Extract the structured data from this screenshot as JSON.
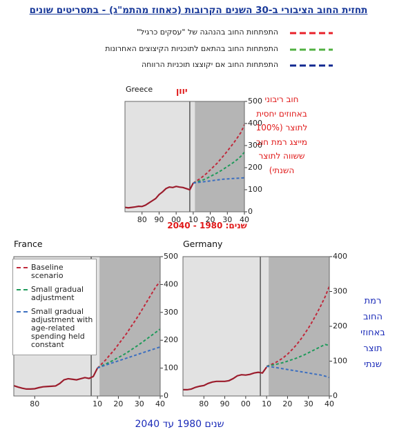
{
  "title": "תחזית החוב הציבורי ב-30 השנים הקרובות (כאחוז מהתמ\"ג) - בתסריטים שונים",
  "legend": [
    {
      "label": "התפתחות החוב בהנהגה של \"עסקים כרגיל\"",
      "color": "#e8202a"
    },
    {
      "label": "התפתחות החוב בהתאם לתוכניות הקיצוצים האחרונות",
      "color": "#50b040"
    },
    {
      "label": "התפתחות החוב אם יקוצצו תוכניות הרווחה",
      "color": "#102890"
    }
  ],
  "notes": {
    "greece_years": "שנים: 1980 - 2040",
    "greece_axis": [
      "חוב ריבוני",
      "באחוזים יחסית",
      "לתוצר (100%",
      "מייצג רמת חוב",
      "ששווה לתוצר",
      "השנתי)"
    ],
    "germany_axis": [
      "רמת",
      "החוב",
      "באחוזי",
      "תוצר",
      "שנתי"
    ],
    "bottom_years": "שנים 1980 עד 2040"
  },
  "chart_data": [
    {
      "type": "line",
      "title": "Greece",
      "subtitle": "יוון",
      "x": [
        1970,
        1972,
        1974,
        1976,
        1978,
        1980,
        1982,
        1984,
        1986,
        1988,
        1990,
        1992,
        1994,
        1996,
        1998,
        2000,
        2002,
        2004,
        2006,
        2008,
        2010,
        2012,
        2014,
        2016,
        2018,
        2020,
        2022,
        2024,
        2026,
        2028,
        2030,
        2032,
        2034,
        2036,
        2038,
        2040
      ],
      "xlim": [
        1970,
        2040
      ],
      "xticks": [
        {
          "value": 1980,
          "label": "80"
        },
        {
          "value": 1990,
          "label": "90"
        },
        {
          "value": 2000,
          "label": "00"
        },
        {
          "value": 2010,
          "label": "10"
        },
        {
          "value": 2020,
          "label": "20"
        },
        {
          "value": 2030,
          "label": "30"
        },
        {
          "value": 2040,
          "label": "40"
        }
      ],
      "ylim": [
        0,
        500
      ],
      "yticks": [
        0,
        100,
        200,
        300,
        400,
        500
      ],
      "shade_from": 2011,
      "vline": 2008,
      "grid": false,
      "series": [
        {
          "color": "#9b1c2c",
          "dashed": false,
          "values": [
            20,
            18,
            20,
            22,
            25,
            24,
            30,
            40,
            50,
            60,
            78,
            90,
            105,
            112,
            110,
            115,
            112,
            110,
            105,
            100,
            130,
            null,
            null,
            null,
            null,
            null,
            null,
            null,
            null,
            null,
            null,
            null,
            null,
            null,
            null,
            null
          ]
        },
        {
          "color": "#c0283a",
          "dashed": true,
          "values": [
            null,
            null,
            null,
            null,
            null,
            null,
            null,
            null,
            null,
            null,
            null,
            null,
            null,
            null,
            null,
            null,
            null,
            null,
            null,
            null,
            130,
            140,
            150,
            162,
            175,
            190,
            205,
            220,
            238,
            256,
            275,
            295,
            315,
            337,
            360,
            395
          ]
        },
        {
          "color": "#1e9a5a",
          "dashed": true,
          "values": [
            null,
            null,
            null,
            null,
            null,
            null,
            null,
            null,
            null,
            null,
            null,
            null,
            null,
            null,
            null,
            null,
            null,
            null,
            null,
            null,
            130,
            135,
            140,
            145,
            152,
            160,
            168,
            176,
            185,
            195,
            205,
            215,
            226,
            238,
            252,
            270
          ]
        },
        {
          "color": "#3a6ec0",
          "dashed": true,
          "values": [
            null,
            null,
            null,
            null,
            null,
            null,
            null,
            null,
            null,
            null,
            null,
            null,
            null,
            null,
            null,
            null,
            null,
            null,
            null,
            null,
            130,
            132,
            134,
            136,
            138,
            140,
            142,
            144,
            146,
            148,
            149,
            150,
            151,
            152,
            153,
            154
          ]
        }
      ]
    },
    {
      "type": "line",
      "title": "France",
      "x": [
        1970,
        1972,
        1974,
        1976,
        1978,
        1980,
        1982,
        1984,
        1986,
        1988,
        1990,
        1992,
        1994,
        1996,
        1998,
        2000,
        2002,
        2004,
        2006,
        2008,
        2010,
        2012,
        2014,
        2016,
        2018,
        2020,
        2022,
        2024,
        2026,
        2028,
        2030,
        2032,
        2034,
        2036,
        2038,
        2040
      ],
      "xlim": [
        1970,
        2040
      ],
      "xticks": [
        {
          "value": 1980,
          "label": "80"
        },
        {
          "value": 2010,
          "label": "10"
        },
        {
          "value": 2020,
          "label": "20"
        },
        {
          "value": 2030,
          "label": "30"
        },
        {
          "value": 2040,
          "label": "40"
        }
      ],
      "ylim": [
        0,
        500
      ],
      "yticks": [
        0,
        100,
        200,
        300,
        400,
        500
      ],
      "shade_from": 2011,
      "vline": 2007,
      "grid": false,
      "series": [
        {
          "color": "#9b1c2c",
          "dashed": false,
          "values": [
            37,
            32,
            28,
            25,
            25,
            26,
            30,
            33,
            34,
            35,
            36,
            45,
            58,
            62,
            60,
            58,
            62,
            66,
            63,
            70,
            100,
            null,
            null,
            null,
            null,
            null,
            null,
            null,
            null,
            null,
            null,
            null,
            null,
            null,
            null,
            null
          ]
        },
        {
          "name": "Baseline scenario",
          "color": "#c0283a",
          "dashed": true,
          "values": [
            null,
            null,
            null,
            null,
            null,
            null,
            null,
            null,
            null,
            null,
            null,
            null,
            null,
            null,
            null,
            null,
            null,
            null,
            null,
            null,
            100,
            115,
            130,
            148,
            165,
            185,
            205,
            225,
            248,
            270,
            293,
            318,
            343,
            368,
            393,
            410
          ]
        },
        {
          "name": "Small gradual adjustment",
          "color": "#1e9a5a",
          "dashed": true,
          "values": [
            null,
            null,
            null,
            null,
            null,
            null,
            null,
            null,
            null,
            null,
            null,
            null,
            null,
            null,
            null,
            null,
            null,
            null,
            null,
            null,
            100,
            108,
            115,
            122,
            130,
            138,
            146,
            155,
            165,
            175,
            185,
            196,
            207,
            218,
            229,
            240
          ]
        },
        {
          "name": "Small gradual adjustment with age-related spending held constant",
          "color": "#3a6ec0",
          "dashed": true,
          "values": [
            null,
            null,
            null,
            null,
            null,
            null,
            null,
            null,
            null,
            null,
            null,
            null,
            null,
            null,
            null,
            null,
            null,
            null,
            null,
            null,
            100,
            106,
            111,
            116,
            121,
            126,
            131,
            136,
            141,
            146,
            151,
            156,
            161,
            166,
            171,
            176
          ]
        }
      ]
    },
    {
      "type": "line",
      "title": "Germany",
      "x": [
        1970,
        1972,
        1974,
        1976,
        1978,
        1980,
        1982,
        1984,
        1986,
        1988,
        1990,
        1992,
        1994,
        1996,
        1998,
        2000,
        2002,
        2004,
        2006,
        2008,
        2010,
        2012,
        2014,
        2016,
        2018,
        2020,
        2022,
        2024,
        2026,
        2028,
        2030,
        2032,
        2034,
        2036,
        2038,
        2040
      ],
      "xlim": [
        1970,
        2040
      ],
      "xticks": [
        {
          "value": 1980,
          "label": "80"
        },
        {
          "value": 1990,
          "label": "90"
        },
        {
          "value": 2000,
          "label": "00"
        },
        {
          "value": 2010,
          "label": "10"
        },
        {
          "value": 2020,
          "label": "20"
        },
        {
          "value": 2030,
          "label": "30"
        },
        {
          "value": 2040,
          "label": "40"
        }
      ],
      "ylim": [
        0,
        400
      ],
      "yticks": [
        0,
        100,
        200,
        300,
        400
      ],
      "shade_from": 2011,
      "vline": 2007,
      "grid": false,
      "series": [
        {
          "color": "#9b1c2c",
          "dashed": false,
          "values": [
            18,
            18,
            20,
            25,
            28,
            30,
            36,
            40,
            42,
            42,
            42,
            44,
            50,
            58,
            61,
            60,
            62,
            66,
            68,
            66,
            83,
            null,
            null,
            null,
            null,
            null,
            null,
            null,
            null,
            null,
            null,
            null,
            null,
            null,
            null,
            null
          ]
        },
        {
          "color": "#c0283a",
          "dashed": true,
          "values": [
            null,
            null,
            null,
            null,
            null,
            null,
            null,
            null,
            null,
            null,
            null,
            null,
            null,
            null,
            null,
            null,
            null,
            null,
            null,
            null,
            85,
            90,
            95,
            102,
            110,
            120,
            132,
            145,
            160,
            177,
            195,
            215,
            237,
            260,
            285,
            315
          ]
        },
        {
          "color": "#1e9a5a",
          "dashed": true,
          "values": [
            null,
            null,
            null,
            null,
            null,
            null,
            null,
            null,
            null,
            null,
            null,
            null,
            null,
            null,
            null,
            null,
            null,
            null,
            null,
            null,
            85,
            88,
            90,
            93,
            96,
            100,
            104,
            108,
            113,
            118,
            124,
            130,
            136,
            142,
            148,
            145
          ]
        },
        {
          "color": "#3a6ec0",
          "dashed": true,
          "values": [
            null,
            null,
            null,
            null,
            null,
            null,
            null,
            null,
            null,
            null,
            null,
            null,
            null,
            null,
            null,
            null,
            null,
            null,
            null,
            null,
            85,
            84,
            82,
            80,
            78,
            76,
            74,
            72,
            70,
            68,
            66,
            64,
            62,
            60,
            57,
            53
          ]
        }
      ]
    }
  ]
}
